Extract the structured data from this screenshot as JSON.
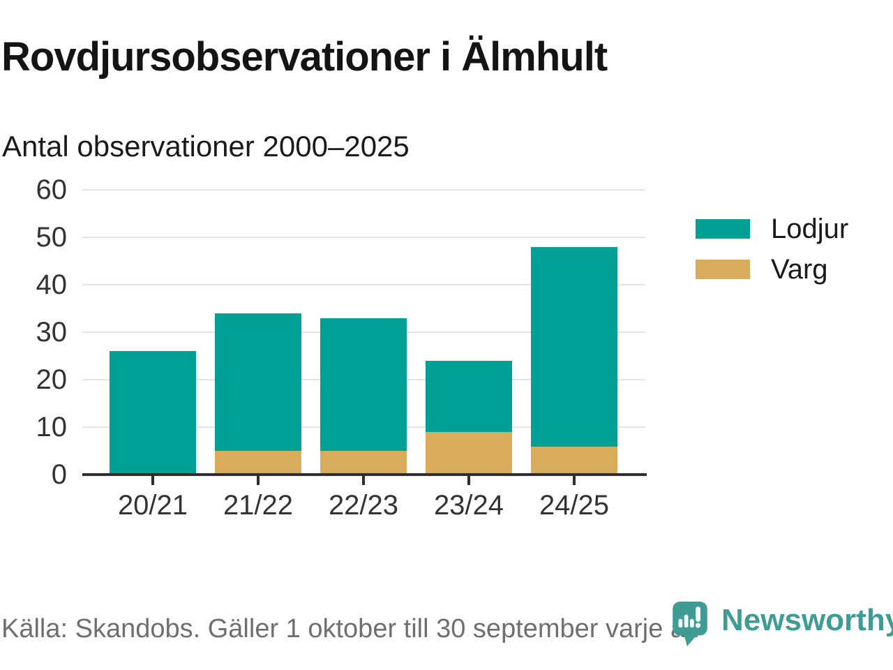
{
  "header": {
    "title": "Rovdjursobservationer i Älmhult",
    "subtitle": "Antal observationer 2000–2025"
  },
  "chart_data": {
    "type": "bar",
    "stacked": true,
    "title": "Rovdjursobservationer i Älmhult",
    "subtitle": "Antal observationer 2000–2025",
    "categories": [
      "20/21",
      "21/22",
      "22/23",
      "23/24",
      "24/25"
    ],
    "series": [
      {
        "name": "Lodjur",
        "color": "#00a096",
        "values": [
          26,
          29,
          28,
          15,
          42
        ]
      },
      {
        "name": "Varg",
        "color": "#d9ac5c",
        "values": [
          0,
          5,
          5,
          9,
          6
        ]
      }
    ],
    "totals": [
      26,
      34,
      33,
      24,
      48
    ],
    "xlabel": "",
    "ylabel": "",
    "ylim": [
      0,
      60
    ],
    "y_ticks": [
      0,
      10,
      20,
      30,
      40,
      50,
      60
    ],
    "grid": "horizontal",
    "legend_position": "right"
  },
  "footer": {
    "source": "Källa: Skandobs. Gäller 1 oktober till 30 september varje år.",
    "brand": "Newsworthy",
    "logo_icon": "newsworthy-pin-chart-icon"
  },
  "colors": {
    "lodjur": "#00a096",
    "varg": "#d9ac5c",
    "brand_teal": "#3e9c95",
    "axis_line": "#2e2e2e",
    "grid_line": "#e3e3e3",
    "title_text": "#141414",
    "axis_text": "#333333",
    "muted_text": "#6f6f6f"
  }
}
